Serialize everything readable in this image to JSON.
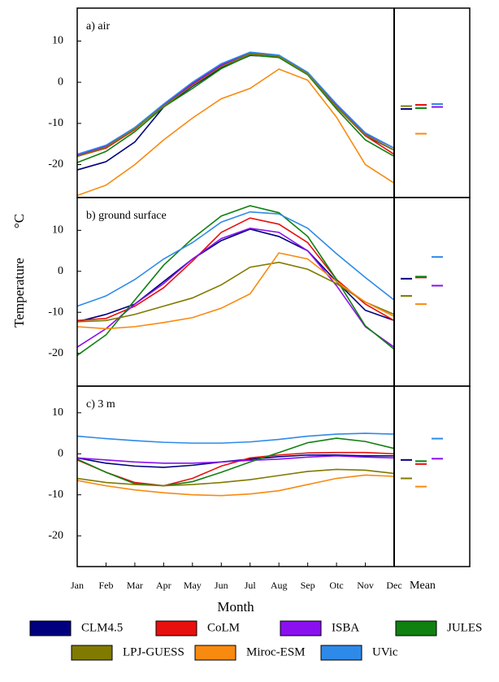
{
  "chart_data": [
    {
      "type": "line",
      "title": "a) air",
      "ylim": [
        -28,
        18
      ],
      "yticks": [
        10,
        0,
        -10,
        -20
      ],
      "series": [
        {
          "color": "#00007f",
          "values": [
            -21.3,
            -19.3,
            -14.5,
            -6,
            -1,
            3.5,
            6.5,
            6.2,
            2,
            -6,
            -13,
            -16.5
          ],
          "mean": -6.5
        },
        {
          "color": "#e8100e",
          "values": [
            -18,
            -16,
            -11.5,
            -5.5,
            -0.5,
            4,
            7,
            6.5,
            2,
            -6,
            -13,
            -17.5
          ],
          "mean": -5.5
        },
        {
          "color": "#8a10f0",
          "values": [
            -17.8,
            -15.5,
            -11,
            -5.5,
            -0.3,
            4.2,
            7.2,
            6.5,
            2.2,
            -5.5,
            -12.5,
            -16
          ],
          "mean": -6
        },
        {
          "color": "#108010",
          "values": [
            -19.5,
            -16.8,
            -12,
            -6,
            -1.5,
            3.3,
            6.6,
            6,
            1.8,
            -6.5,
            -14,
            -18
          ],
          "mean": -6.3
        },
        {
          "color": "#807a00",
          "values": [
            -18,
            -15.8,
            -11.3,
            -5.8,
            -0.8,
            3.8,
            6.9,
            6.3,
            2,
            -6,
            -12.8,
            -16.5
          ],
          "mean": -5.8
        },
        {
          "color": "#f88a10",
          "values": [
            -27.5,
            -25,
            -20,
            -14,
            -8.7,
            -4,
            -1.5,
            3.2,
            0.5,
            -8.5,
            -20,
            -24.5
          ],
          "mean": -12.5
        },
        {
          "color": "#2e8ae8",
          "values": [
            -17.5,
            -15.3,
            -11,
            -5.3,
            0,
            4.5,
            7.3,
            6.6,
            2.4,
            -5.3,
            -12.3,
            -16
          ],
          "mean": -5.3
        }
      ]
    },
    {
      "type": "line",
      "title": "b) ground surface",
      "ylabel": "Temperature",
      "yunit": "°C",
      "ylim": [
        -28,
        18
      ],
      "yticks": [
        10,
        0,
        -10,
        -20
      ],
      "series": [
        {
          "color": "#00007f",
          "values": [
            -12.3,
            -10.5,
            -8,
            -2.5,
            3,
            7.5,
            10.3,
            8.5,
            5,
            -2.5,
            -9.5,
            -12
          ],
          "mean": -1.8
        },
        {
          "color": "#e8100e",
          "values": [
            -12,
            -11.5,
            -8.5,
            -4,
            2.5,
            9.5,
            13,
            11.5,
            7,
            -2,
            -8,
            -12
          ],
          "mean": -1.5
        },
        {
          "color": "#8a10f0",
          "values": [
            -18.5,
            -14,
            -8,
            -3,
            3,
            8,
            10.5,
            9.5,
            5,
            -3.5,
            -13.5,
            -18.5
          ],
          "mean": -3.5
        },
        {
          "color": "#108010",
          "values": [
            -20.5,
            -15.5,
            -7,
            1.5,
            8,
            13.5,
            16,
            14.3,
            8.5,
            -2,
            -13.3,
            -19
          ],
          "mean": -1.3
        },
        {
          "color": "#807a00",
          "values": [
            -12.3,
            -12,
            -10.5,
            -8.5,
            -6.5,
            -3.3,
            1,
            2.2,
            0.5,
            -3,
            -7.5,
            -10.5
          ],
          "mean": -6
        },
        {
          "color": "#f88a10",
          "values": [
            -13.5,
            -14,
            -13.5,
            -12.5,
            -11.3,
            -9,
            -5.5,
            4.5,
            3,
            -2.5,
            -7.5,
            -11
          ],
          "mean": -8
        },
        {
          "color": "#2e8ae8",
          "values": [
            -8.5,
            -6,
            -2,
            3,
            7,
            12,
            14.5,
            14,
            10.5,
            4.3,
            -1.5,
            -7
          ],
          "mean": 3.5
        }
      ]
    },
    {
      "type": "line",
      "title": "c) 3 m",
      "xlabel": "Month",
      "mean_label": "Mean",
      "ylim": [
        -27.5,
        16.5
      ],
      "yticks": [
        10,
        0,
        -10,
        -20
      ],
      "categories": [
        "Jan",
        "Feb",
        "Mar",
        "Apr",
        "May",
        "Jun",
        "Jul",
        "Aug",
        "Sep",
        "Otc",
        "Nov",
        "Dec"
      ],
      "series": [
        {
          "name": "CLM4.5",
          "color": "#00007f",
          "values": [
            -1,
            -2.3,
            -3,
            -3.3,
            -2.8,
            -2,
            -1.3,
            -0.7,
            -0.3,
            -0.3,
            -0.5,
            -0.5
          ],
          "mean": -1.5
        },
        {
          "name": "CoLM",
          "color": "#e8100e",
          "values": [
            -1.5,
            -4.5,
            -7,
            -7.8,
            -6,
            -3,
            -1,
            -0.3,
            0.2,
            0.3,
            0.3,
            0
          ],
          "mean": -2.5
        },
        {
          "name": "ISBA",
          "color": "#8a10f0",
          "values": [
            -1,
            -1.5,
            -2,
            -2.3,
            -2.3,
            -2,
            -1.6,
            -1.3,
            -0.8,
            -0.5,
            -0.8,
            -1
          ],
          "mean": -1.2
        },
        {
          "name": "JULES",
          "color": "#108010",
          "values": [
            -1.3,
            -4.5,
            -7.3,
            -7.8,
            -6.8,
            -4.5,
            -2,
            0.3,
            2.7,
            3.8,
            3,
            1.3
          ],
          "mean": -1.8
        },
        {
          "name": "LPJ-GUESS",
          "color": "#807a00",
          "values": [
            -6,
            -7,
            -7.5,
            -7.8,
            -7.5,
            -7,
            -6.3,
            -5.3,
            -4.3,
            -3.8,
            -4,
            -4.8
          ],
          "mean": -6
        },
        {
          "name": "Miroc-ESM",
          "color": "#f88a10",
          "values": [
            -6.5,
            -7.8,
            -8.8,
            -9.5,
            -10,
            -10.2,
            -9.8,
            -9,
            -7.5,
            -6,
            -5.2,
            -5.5
          ],
          "mean": -8
        },
        {
          "name": "UVic",
          "color": "#2e8ae8",
          "values": [
            4.3,
            3.7,
            3.2,
            2.8,
            2.6,
            2.6,
            2.9,
            3.5,
            4.3,
            4.8,
            5,
            4.8
          ],
          "mean": 3.7
        }
      ]
    }
  ]
}
